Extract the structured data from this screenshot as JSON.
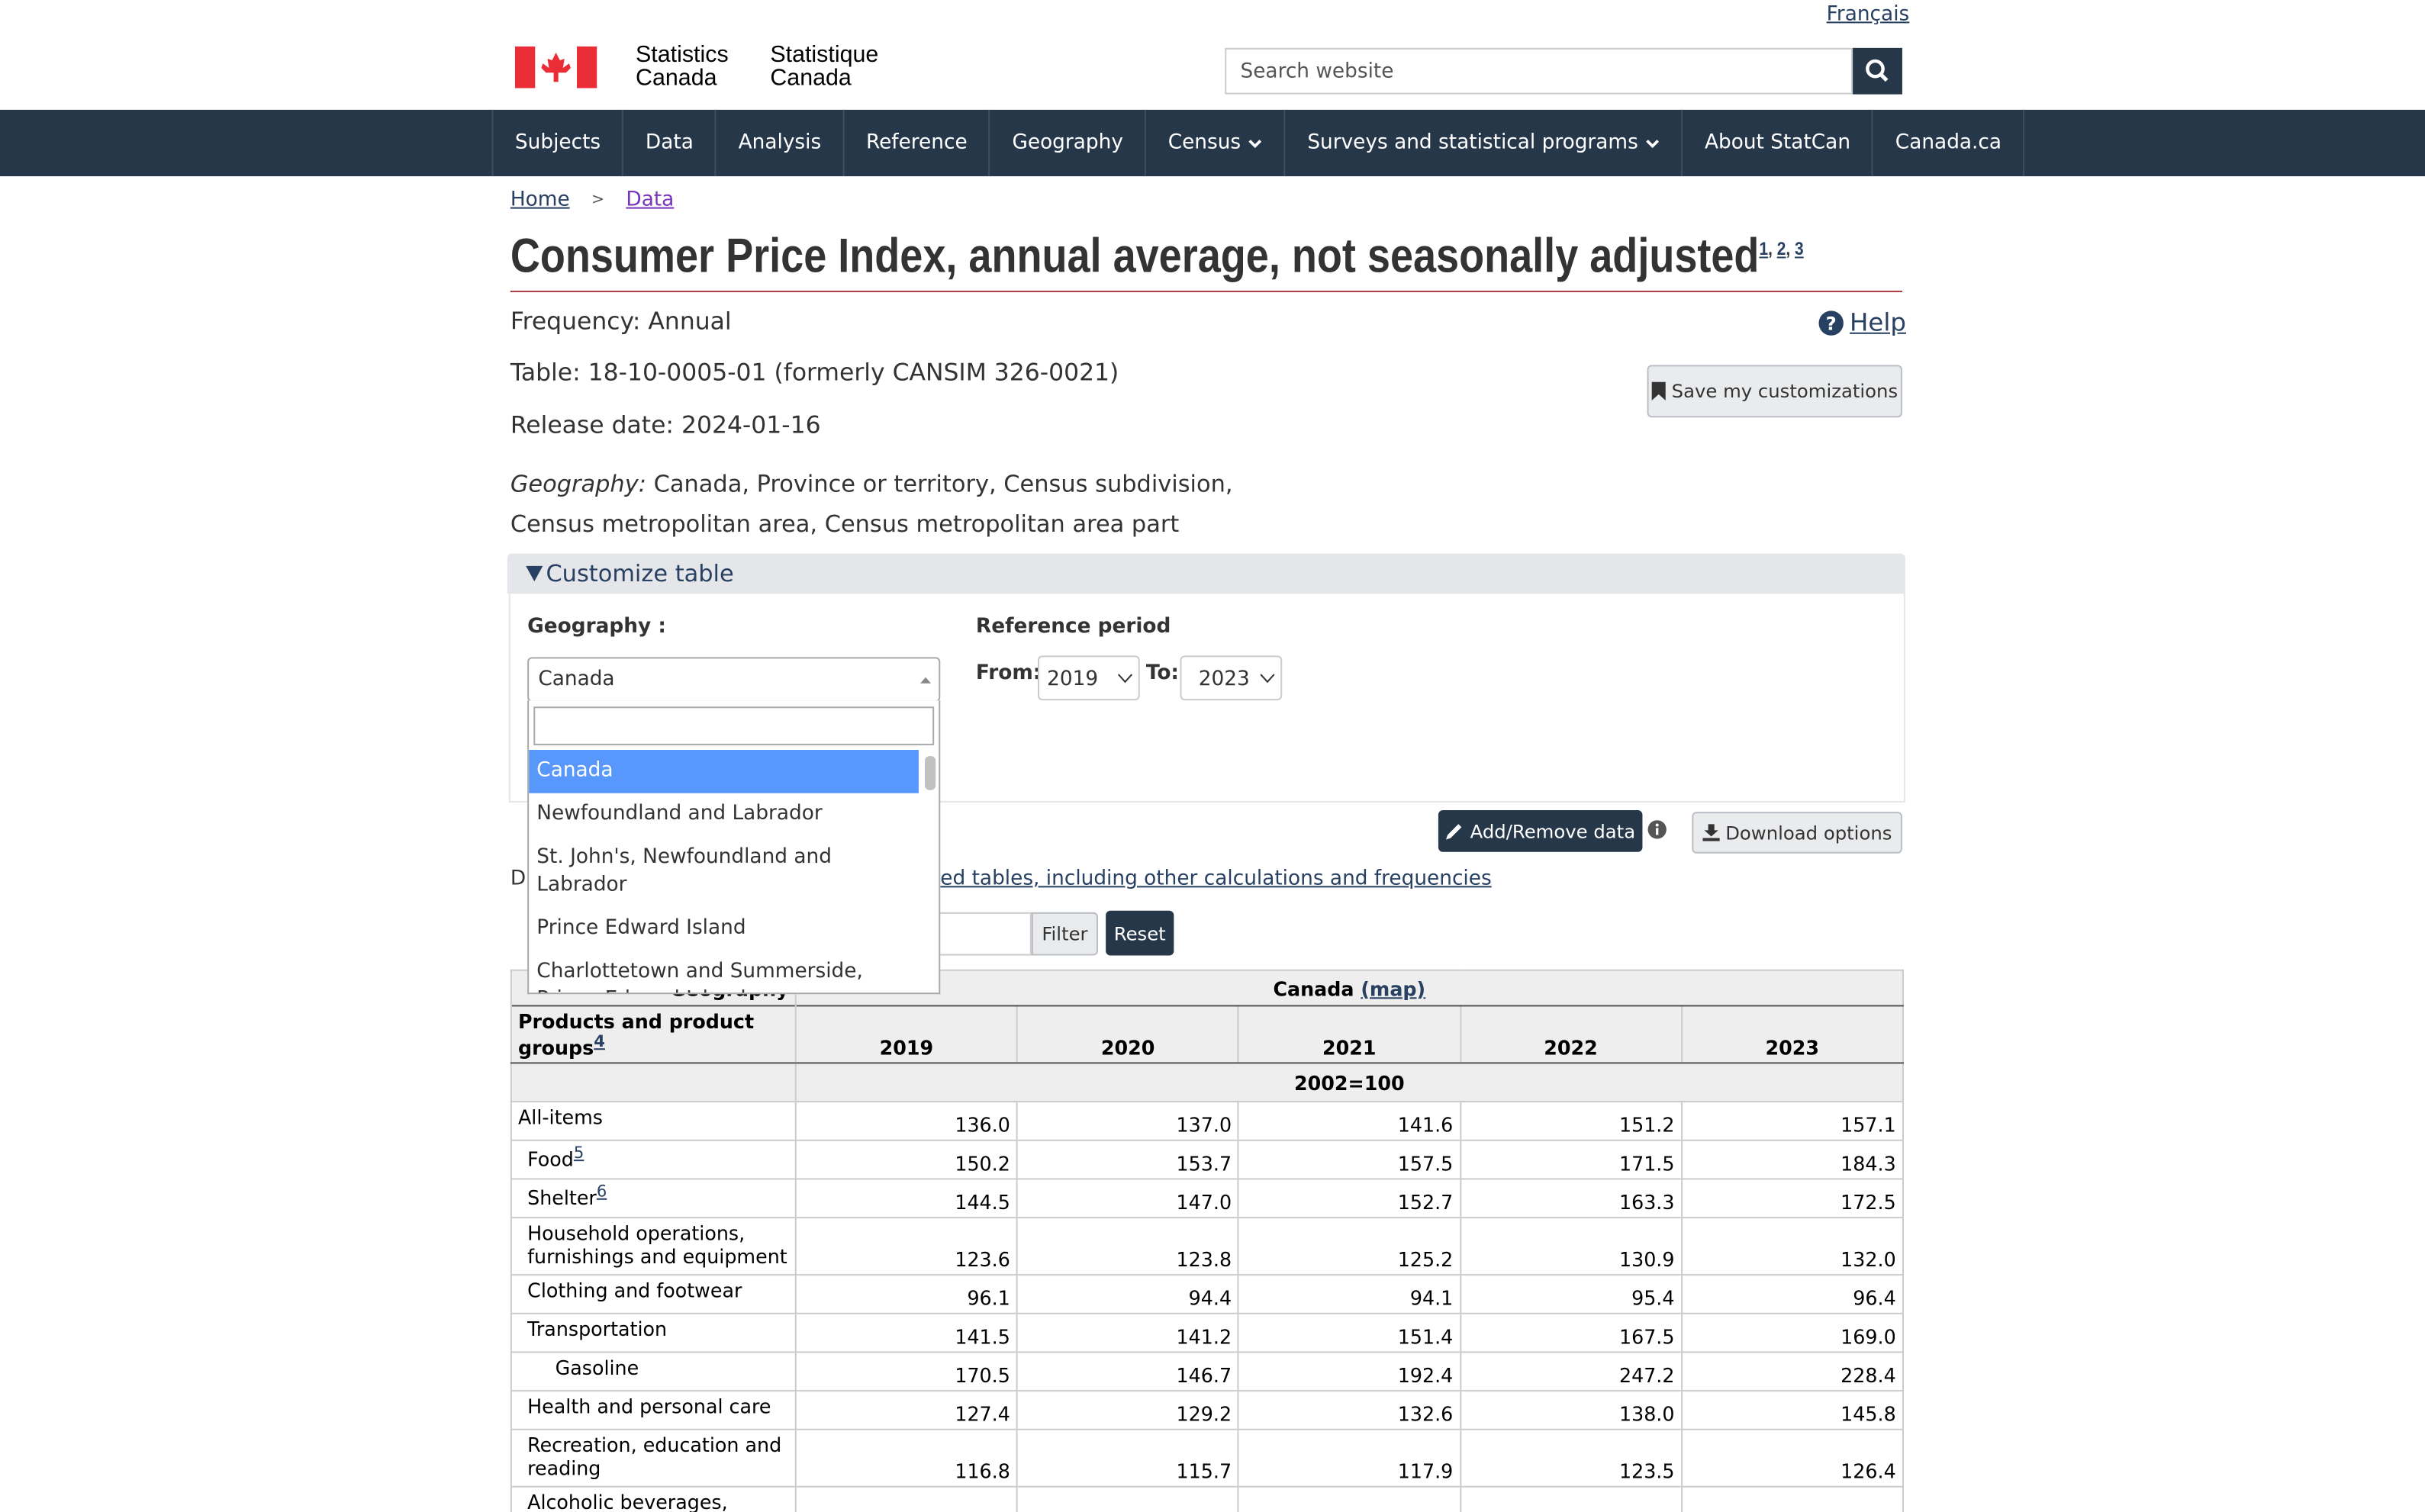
{
  "header": {
    "language_link": "Français",
    "org_en_1": "Statistics",
    "org_en_2": "Canada",
    "org_fr_1": "Statistique",
    "org_fr_2": "Canada",
    "search_placeholder": "Search website"
  },
  "nav": [
    "Subjects",
    "Data",
    "Analysis",
    "Reference",
    "Geography",
    "Census",
    "Surveys and statistical programs",
    "About StatCan",
    "Canada.ca"
  ],
  "breadcrumb": [
    "Home",
    "Data"
  ],
  "title": "Consumer Price Index, annual average, not seasonally adjusted",
  "title_notes": [
    "1",
    "2",
    "3"
  ],
  "info": {
    "frequency": "Frequency: Annual",
    "table": "Table: 18-10-0005-01 (formerly CANSIM 326-0021)",
    "release": "Release date: 2024-01-16",
    "geography_label": "Geography:",
    "geography_value": "Canada, Province or territory, Census subdivision, Census metropolitan area, Census metropolitan area part"
  },
  "help": "Help",
  "save": "Save my customizations",
  "customize": {
    "title": "Customize table",
    "geography_label": "Geography :",
    "geography_selected": "Canada",
    "options": [
      "Canada",
      "Newfoundland and Labrador",
      "St. John's, Newfoundland and Labrador",
      "Prince Edward Island",
      "Charlottetown and Summerside, Prince Edward Island"
    ],
    "reference_period": "Reference period",
    "from_label": "From:",
    "from": "2019",
    "to_label": "To:",
    "to": "2023"
  },
  "actions": {
    "add_remove": "Add/Remove data",
    "download": "Download options",
    "partial_text": "D",
    "related_link": "ed tables, including other calculations and frequencies",
    "filter": "Filter",
    "reset": "Reset"
  },
  "table": {
    "geography_header": "Geography",
    "geography": "Canada",
    "map_link": "(map)",
    "product_header": "Products and product groups",
    "product_note": "4",
    "columns": [
      "2019",
      "2020",
      "2021",
      "2022",
      "2023"
    ],
    "unit": "2002=100",
    "rows": [
      {
        "label": "All-items",
        "values": [
          "136.0",
          "137.0",
          "141.6",
          "151.2",
          "157.1"
        ]
      },
      {
        "label": "Food",
        "note": "5",
        "values": [
          "150.2",
          "153.7",
          "157.5",
          "171.5",
          "184.3"
        ]
      },
      {
        "label": "Shelter",
        "note": "6",
        "values": [
          "144.5",
          "147.0",
          "152.7",
          "163.3",
          "172.5"
        ]
      },
      {
        "label": "Household operations, furnishings and equipment",
        "values": [
          "123.6",
          "123.8",
          "125.2",
          "130.9",
          "132.0"
        ]
      },
      {
        "label": "Clothing and footwear",
        "values": [
          "96.1",
          "94.4",
          "94.1",
          "95.4",
          "96.4"
        ]
      },
      {
        "label": "Transportation",
        "values": [
          "141.5",
          "141.2",
          "151.4",
          "167.5",
          "169.0"
        ]
      },
      {
        "label": "Gasoline",
        "values": [
          "170.5",
          "146.7",
          "192.4",
          "247.2",
          "228.4"
        ]
      },
      {
        "label": "Health and personal care",
        "values": [
          "127.4",
          "129.2",
          "132.6",
          "138.0",
          "145.8"
        ]
      },
      {
        "label": "Recreation, education and reading",
        "values": [
          "116.8",
          "115.7",
          "117.9",
          "123.5",
          "126.4"
        ]
      },
      {
        "label": "Alcoholic beverages,",
        "values": []
      }
    ]
  }
}
